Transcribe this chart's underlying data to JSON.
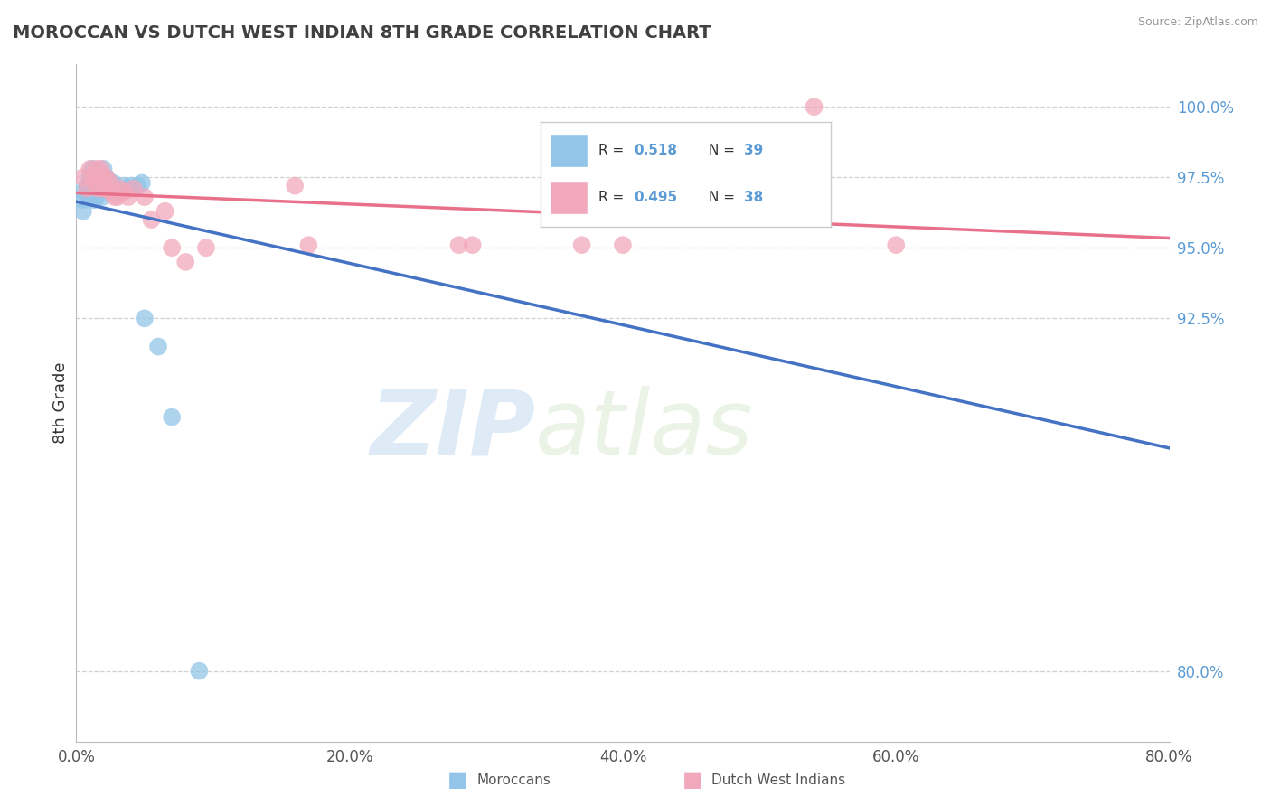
{
  "title": "MOROCCAN VS DUTCH WEST INDIAN 8TH GRADE CORRELATION CHART",
  "source": "Source: ZipAtlas.com",
  "xlabel_ticks": [
    "0.0%",
    "20.0%",
    "40.0%",
    "60.0%",
    "80.0%"
  ],
  "ylabel_ticks": [
    "80.0%",
    "92.5%",
    "95.0%",
    "97.5%",
    "100.0%"
  ],
  "xlabel_values": [
    0.0,
    0.2,
    0.4,
    0.6,
    0.8
  ],
  "ylabel_values": [
    0.8,
    0.925,
    0.95,
    0.975,
    1.0
  ],
  "xlim": [
    0.0,
    0.8
  ],
  "ylim": [
    0.775,
    1.015
  ],
  "moroccan_x": [
    0.005,
    0.005,
    0.005,
    0.008,
    0.01,
    0.01,
    0.012,
    0.012,
    0.013,
    0.013,
    0.015,
    0.015,
    0.015,
    0.016,
    0.016,
    0.017,
    0.018,
    0.018,
    0.019,
    0.02,
    0.02,
    0.022,
    0.022,
    0.025,
    0.025,
    0.027,
    0.028,
    0.03,
    0.032,
    0.035,
    0.038,
    0.04,
    0.045,
    0.048,
    0.05,
    0.06,
    0.07,
    0.09,
    0.35
  ],
  "moroccan_y": [
    0.97,
    0.967,
    0.963,
    0.972,
    0.968,
    0.975,
    0.978,
    0.973,
    0.97,
    0.967,
    0.975,
    0.971,
    0.968,
    0.975,
    0.971,
    0.973,
    0.975,
    0.971,
    0.968,
    0.978,
    0.975,
    0.975,
    0.971,
    0.973,
    0.97,
    0.973,
    0.97,
    0.97,
    0.971,
    0.972,
    0.971,
    0.972,
    0.972,
    0.973,
    0.925,
    0.915,
    0.89,
    0.8,
    0.978
  ],
  "dutch_x": [
    0.005,
    0.008,
    0.01,
    0.012,
    0.014,
    0.015,
    0.015,
    0.016,
    0.016,
    0.018,
    0.018,
    0.02,
    0.02,
    0.022,
    0.022,
    0.025,
    0.025,
    0.028,
    0.03,
    0.032,
    0.035,
    0.038,
    0.042,
    0.05,
    0.055,
    0.065,
    0.07,
    0.08,
    0.095,
    0.16,
    0.17,
    0.28,
    0.29,
    0.35,
    0.37,
    0.4,
    0.54,
    0.6
  ],
  "dutch_y": [
    0.975,
    0.971,
    0.978,
    0.975,
    0.973,
    0.978,
    0.975,
    0.975,
    0.971,
    0.978,
    0.975,
    0.975,
    0.971,
    0.975,
    0.971,
    0.973,
    0.97,
    0.968,
    0.968,
    0.971,
    0.97,
    0.968,
    0.971,
    0.968,
    0.96,
    0.963,
    0.95,
    0.945,
    0.95,
    0.972,
    0.951,
    0.951,
    0.951,
    0.971,
    0.951,
    0.951,
    1.0,
    0.951
  ],
  "moroccan_color": "#92C5E8",
  "dutch_color": "#F2A8BC",
  "moroccan_line_color": "#4472C4",
  "dutch_line_color": "#E8708A",
  "legend_r_moroccan": "0.518",
  "legend_n_moroccan": "39",
  "legend_r_dutch": "0.495",
  "legend_n_dutch": "38",
  "watermark_zip": "ZIP",
  "watermark_atlas": "atlas",
  "title_color": "#404040",
  "grid_color": "#d0d0d0",
  "right_label_color": "#5B9BD5"
}
